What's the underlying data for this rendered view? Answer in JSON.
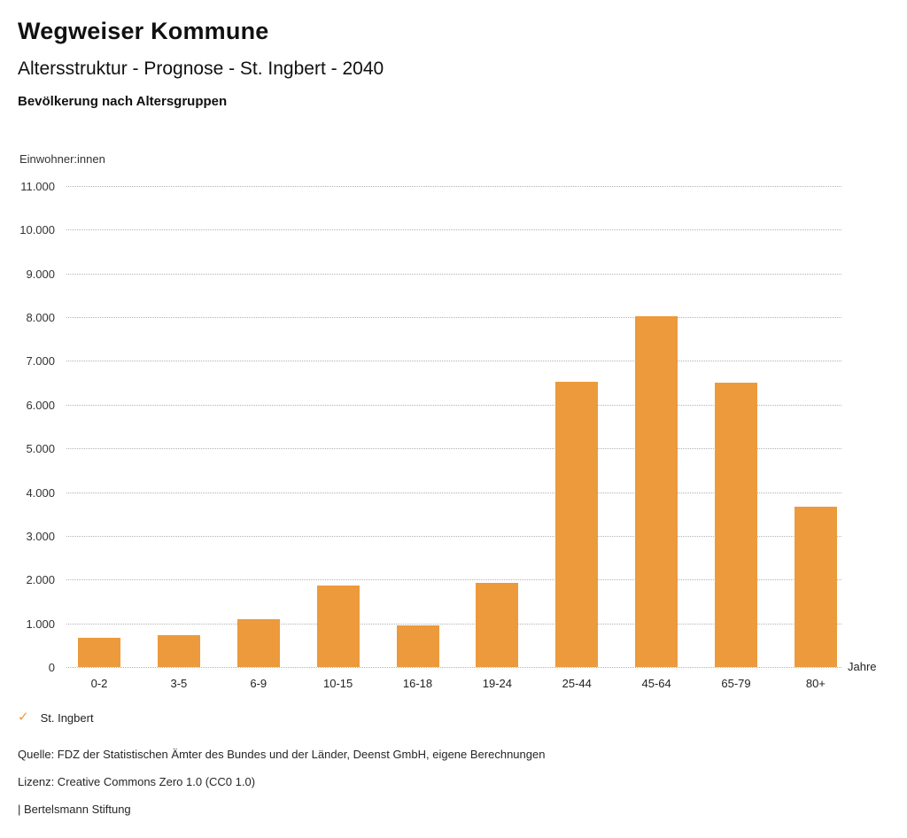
{
  "header": {
    "app_title": "Wegweiser Kommune",
    "chart_title": "Altersstruktur - Prognose - St. Ingbert - 2040",
    "chart_subtitle": "Bevölkerung nach Altersgruppen"
  },
  "chart_data": {
    "type": "bar",
    "title": "Altersstruktur - Prognose - St. Ingbert - 2040",
    "subtitle": "Bevölkerung nach Altersgruppen",
    "series_name": "St. Ingbert",
    "categories": [
      "0-2",
      "3-5",
      "6-9",
      "10-15",
      "16-18",
      "19-24",
      "25-44",
      "45-64",
      "65-79",
      "80+"
    ],
    "values": [
      660,
      730,
      1090,
      1860,
      950,
      1930,
      6520,
      8030,
      6500,
      3670
    ],
    "ylabel": "Einwohner:innen",
    "xlabel": "Jahre",
    "ylim": [
      0,
      11000
    ],
    "ytick_step": 1000,
    "ytick_labels": [
      "0",
      "1.000",
      "2.000",
      "3.000",
      "4.000",
      "5.000",
      "6.000",
      "7.000",
      "8.000",
      "9.000",
      "10.000",
      "11.000"
    ],
    "grid": "horizontal-dotted",
    "legend_position": "bottom-left",
    "bar_color": "#EC9A3C"
  },
  "legend": {
    "check_icon": "✓",
    "label": "St. Ingbert",
    "check_color": "#EC9A3C"
  },
  "footer": {
    "source": "Quelle: FDZ der Statistischen Ämter des Bundes und der Länder, Deenst GmbH, eigene Berechnungen",
    "license": "Lizenz: Creative Commons Zero 1.0 (CC0 1.0)",
    "attribution": "| Bertelsmann Stiftung"
  },
  "colors": {
    "bar": "#EC9A3C",
    "gridline": "#B3B3B3",
    "text": "#1A1A1A"
  }
}
